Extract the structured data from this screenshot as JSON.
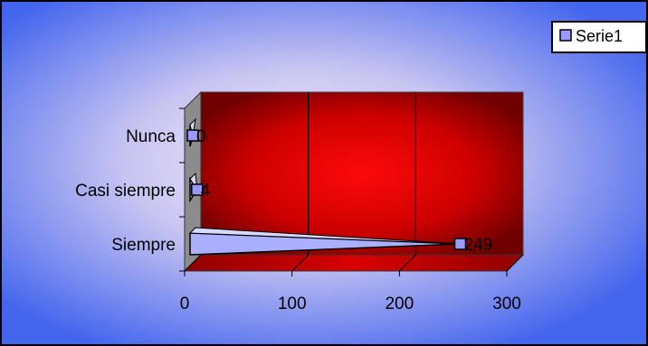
{
  "chart_data": {
    "type": "bar",
    "orientation": "horizontal",
    "three_d": true,
    "categories": [
      "Siempre",
      "Casi siempre",
      "Nunca"
    ],
    "series": [
      {
        "name": "Serie1",
        "values": [
          249,
          4,
          0
        ],
        "color": "#9999ff"
      }
    ],
    "data_labels": [
      "249",
      "4",
      "0"
    ],
    "xlim": [
      0,
      300
    ],
    "x_ticks": [
      0,
      100,
      200,
      300
    ],
    "grid": true,
    "legend": "top-right",
    "title": "",
    "xlabel": "",
    "ylabel": ""
  },
  "colors": {
    "background_outer": "#4466ee",
    "background_inner": "#f0e4f8",
    "plot_wall_outer": "#700000",
    "plot_wall_inner": "#ff0a0a",
    "floor": "#b00000",
    "side_wall": "#8c8c8c",
    "bar_fill": "#aab0ff",
    "marker_fill": "#9999ff"
  }
}
